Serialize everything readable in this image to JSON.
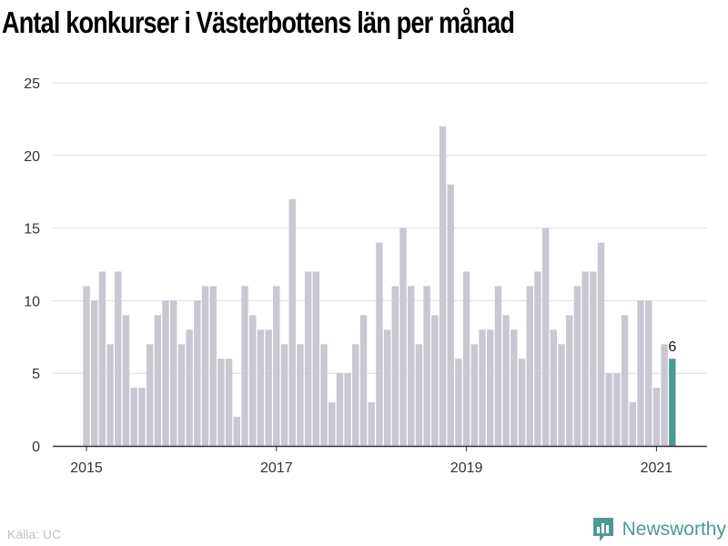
{
  "title": "Antal konkurser i Västerbottens län per månad",
  "source": "Källa: UC",
  "brand": {
    "name": "Newsworthy",
    "icon": "bar-chart-icon"
  },
  "colors": {
    "bar": "#c8c7d2",
    "highlight": "#4b9b93",
    "grid": "#dddddd",
    "axis": "#333333"
  },
  "chart_data": {
    "type": "bar",
    "title": "Antal konkurser i Västerbottens län per månad",
    "xlabel": "",
    "ylabel": "",
    "ylim": [
      0,
      25
    ],
    "yticks": [
      0,
      5,
      10,
      15,
      20,
      25
    ],
    "xticks": [
      "2015",
      "2017",
      "2019",
      "2021"
    ],
    "grid": true,
    "highlight_label": "6",
    "categories": [
      "2015-01",
      "2015-02",
      "2015-03",
      "2015-04",
      "2015-05",
      "2015-06",
      "2015-07",
      "2015-08",
      "2015-09",
      "2015-10",
      "2015-11",
      "2015-12",
      "2016-01",
      "2016-02",
      "2016-03",
      "2016-04",
      "2016-05",
      "2016-06",
      "2016-07",
      "2016-08",
      "2016-09",
      "2016-10",
      "2016-11",
      "2016-12",
      "2017-01",
      "2017-02",
      "2017-03",
      "2017-04",
      "2017-05",
      "2017-06",
      "2017-07",
      "2017-08",
      "2017-09",
      "2017-10",
      "2017-11",
      "2017-12",
      "2018-01",
      "2018-02",
      "2018-03",
      "2018-04",
      "2018-05",
      "2018-06",
      "2018-07",
      "2018-08",
      "2018-09",
      "2018-10",
      "2018-11",
      "2018-12",
      "2019-01",
      "2019-02",
      "2019-03",
      "2019-04",
      "2019-05",
      "2019-06",
      "2019-07",
      "2019-08",
      "2019-09",
      "2019-10",
      "2019-11",
      "2019-12",
      "2020-01",
      "2020-02",
      "2020-03",
      "2020-04",
      "2020-05",
      "2020-06",
      "2020-07",
      "2020-08",
      "2020-09",
      "2020-10",
      "2020-11",
      "2020-12",
      "2021-01",
      "2021-02",
      "2021-03"
    ],
    "values": [
      11,
      10,
      12,
      7,
      12,
      9,
      4,
      4,
      7,
      9,
      10,
      10,
      7,
      8,
      10,
      11,
      11,
      6,
      6,
      2,
      11,
      9,
      8,
      8,
      11,
      7,
      17,
      7,
      12,
      12,
      7,
      3,
      5,
      5,
      7,
      9,
      3,
      14,
      8,
      11,
      15,
      11,
      7,
      11,
      9,
      22,
      18,
      6,
      12,
      7,
      8,
      8,
      11,
      9,
      8,
      6,
      11,
      12,
      15,
      8,
      7,
      9,
      11,
      12,
      12,
      14,
      5,
      5,
      9,
      3,
      10,
      10,
      4,
      7,
      6
    ]
  }
}
